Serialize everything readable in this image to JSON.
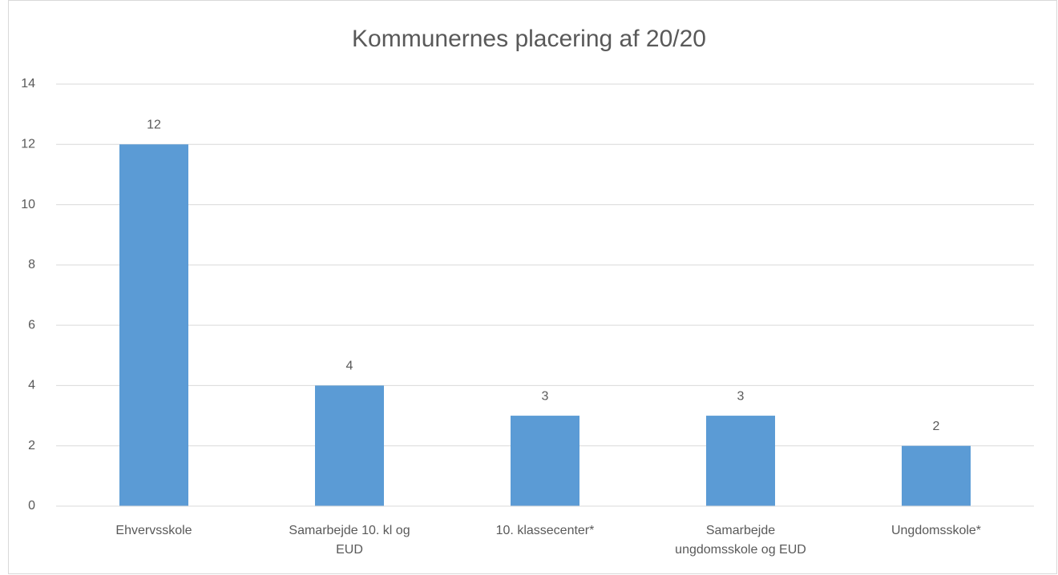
{
  "chart_data": {
    "type": "bar",
    "title": "Kommunernes placering af 20/20",
    "categories": [
      "Ehvervsskole",
      "Samarbejde 10. kl og EUD",
      "10. klassecenter*",
      "Samarbejde ungdomsskole og EUD",
      "Ungdomsskole*"
    ],
    "values": [
      12,
      4,
      3,
      3,
      2
    ],
    "color": "#5b9bd5",
    "ylim": [
      0,
      14
    ],
    "yticks": [
      0,
      2,
      4,
      6,
      8,
      10,
      12,
      14
    ],
    "grid": true
  }
}
